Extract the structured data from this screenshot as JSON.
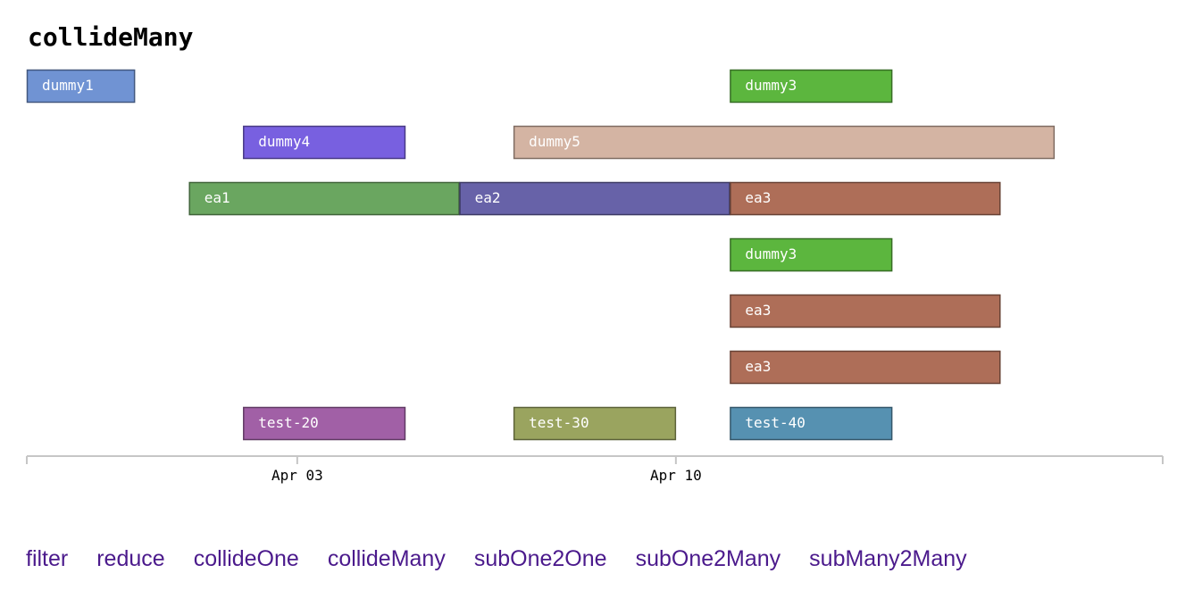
{
  "page": {
    "title": "collideMany"
  },
  "chart_data": {
    "type": "timeline",
    "x_range": [
      "2024-03-29",
      "2024-04-19"
    ],
    "ticks": [
      {
        "date": "2024-04-03",
        "label": "Apr 03"
      },
      {
        "date": "2024-04-10",
        "label": "Apr 10"
      }
    ],
    "rows": [
      [
        {
          "label": "dummy1",
          "start": "2024-03-29",
          "end": "2024-03-31",
          "color": "#7093d3"
        },
        {
          "label": "dummy3",
          "start": "2024-04-11",
          "end": "2024-04-14",
          "color": "#5cb63e"
        }
      ],
      [
        {
          "label": "dummy4",
          "start": "2024-04-02",
          "end": "2024-04-05",
          "color": "#7860e0"
        },
        {
          "label": "dummy5",
          "start": "2024-04-07",
          "end": "2024-04-17",
          "color": "#d4b4a3"
        }
      ],
      [
        {
          "label": "ea1",
          "start": "2024-04-01",
          "end": "2024-04-06",
          "color": "#6aa660"
        },
        {
          "label": "ea2",
          "start": "2024-04-06",
          "end": "2024-04-11",
          "color": "#6762a8"
        },
        {
          "label": "ea3",
          "start": "2024-04-11",
          "end": "2024-04-16",
          "color": "#ae6e58"
        }
      ],
      [
        {
          "label": "dummy3",
          "start": "2024-04-11",
          "end": "2024-04-14",
          "color": "#5cb63e"
        }
      ],
      [
        {
          "label": "ea3",
          "start": "2024-04-11",
          "end": "2024-04-16",
          "color": "#ae6e58"
        }
      ],
      [
        {
          "label": "ea3",
          "start": "2024-04-11",
          "end": "2024-04-16",
          "color": "#ae6e58"
        }
      ],
      [
        {
          "label": "test-20",
          "start": "2024-04-02",
          "end": "2024-04-05",
          "color": "#a160a6"
        },
        {
          "label": "test-30",
          "start": "2024-04-07",
          "end": "2024-04-10",
          "color": "#9aa45f"
        },
        {
          "label": "test-40",
          "start": "2024-04-11",
          "end": "2024-04-14",
          "color": "#5691b1"
        }
      ]
    ]
  },
  "nav": {
    "links": [
      "filter",
      "reduce",
      "collideOne",
      "collideMany",
      "subOne2One",
      "subOne2Many",
      "subMany2Many"
    ],
    "link_color": "#4b1a8c"
  }
}
